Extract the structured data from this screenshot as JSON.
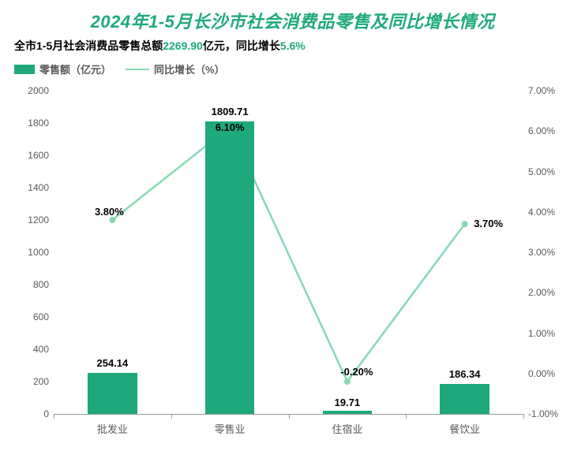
{
  "title": {
    "text": "2024年1-5月长沙市社会消费品零售及同比增长情况",
    "color": "#1ea97c",
    "fontsize": 22,
    "italic": true,
    "weight": 700
  },
  "subtitle": {
    "prefix": "全市1-5月社会消费品零售总额",
    "value1": "2269.90",
    "mid": "亿元，同比增长",
    "value2": "5.6%",
    "text_color": "#000000",
    "num_color": "#1ea97c",
    "fontsize": 14
  },
  "legend": {
    "items": [
      {
        "label": "零售额（亿元）",
        "type": "bar",
        "color": "#1ea97c"
      },
      {
        "label": "同比增长（%）",
        "type": "line",
        "color": "#87d9b1"
      }
    ],
    "text_color": "#595959",
    "fontsize": 13
  },
  "chart": {
    "type": "bar+line",
    "background_color": "#ffffff",
    "categories": [
      "批发业",
      "零售业",
      "住宿业",
      "餐饮业"
    ],
    "bar": {
      "values": [
        254.14,
        1809.71,
        19.71,
        186.34
      ],
      "color": "#1ea97c",
      "width_ratio": 0.42,
      "label_fontsize": 13,
      "label_weight": 700,
      "label_color": "#000000"
    },
    "line": {
      "values": [
        3.8,
        6.1,
        -0.2,
        3.7
      ],
      "labels": [
        "3.80%",
        "6.10%",
        "-0.20%",
        "3.70%"
      ],
      "color": "#87d9b1",
      "stroke_width": 2.5,
      "marker_color": "#87d9b1",
      "marker_radius": 4,
      "label_fontsize": 13,
      "label_weight": 700,
      "label_color": "#000000"
    },
    "y_left": {
      "min": 0,
      "max": 2000,
      "step": 200,
      "color": "#595959",
      "fontsize": 12
    },
    "y_right": {
      "min": -1.0,
      "max": 7.0,
      "step": 1.0,
      "suffix": "%",
      "decimals": 2,
      "color": "#595959",
      "fontsize": 12
    },
    "x_axis": {
      "color": "#999999",
      "label_color": "#595959",
      "fontsize": 13
    },
    "grid": false
  }
}
